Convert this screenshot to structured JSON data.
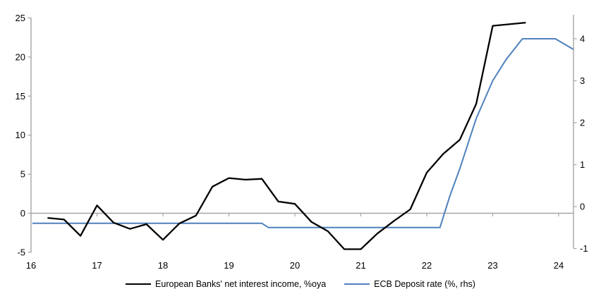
{
  "chart_data": {
    "type": "line",
    "title": "",
    "x_axis": {
      "tick_labels": [
        "16",
        "17",
        "18",
        "19",
        "20",
        "21",
        "22",
        "23",
        "24"
      ],
      "tick_values": [
        16,
        17,
        18,
        19,
        20,
        21,
        22,
        23,
        24
      ],
      "range": [
        16,
        24.25
      ]
    },
    "left_axis": {
      "tick_values": [
        25,
        20,
        15,
        10,
        5,
        0,
        -5
      ],
      "range": [
        -5,
        25
      ]
    },
    "right_axis": {
      "tick_values": [
        4,
        3,
        2,
        1,
        0,
        -1
      ],
      "range": [
        -1,
        4.5
      ]
    },
    "grid": "zero-line-only",
    "legend_position": "bottom",
    "colors": {
      "axis": "#a6a6a6",
      "zero_line": "#a6a6a6",
      "series_nii": "#000000",
      "series_ecb": "#4f81bd"
    },
    "series": [
      {
        "name": "European Banks' net interest income, %oya",
        "axis": "left",
        "color": "#000000",
        "points": [
          [
            16.25,
            -0.6
          ],
          [
            16.5,
            -0.8
          ],
          [
            16.75,
            -2.9
          ],
          [
            17.0,
            1.0
          ],
          [
            17.25,
            -1.2
          ],
          [
            17.5,
            -2.0
          ],
          [
            17.75,
            -1.4
          ],
          [
            18.0,
            -3.4
          ],
          [
            18.25,
            -1.3
          ],
          [
            18.5,
            -0.3
          ],
          [
            18.75,
            3.4
          ],
          [
            19.0,
            4.5
          ],
          [
            19.25,
            4.3
          ],
          [
            19.5,
            4.4
          ],
          [
            19.75,
            1.5
          ],
          [
            20.0,
            1.2
          ],
          [
            20.25,
            -1.1
          ],
          [
            20.5,
            -2.3
          ],
          [
            20.75,
            -4.6
          ],
          [
            21.0,
            -4.6
          ],
          [
            21.25,
            -2.6
          ],
          [
            21.5,
            -1.0
          ],
          [
            21.75,
            0.5
          ],
          [
            22.0,
            5.2
          ],
          [
            22.25,
            7.6
          ],
          [
            22.5,
            9.4
          ],
          [
            22.75,
            14.0
          ],
          [
            23.0,
            24.0
          ],
          [
            23.25,
            24.2
          ],
          [
            23.5,
            24.4
          ]
        ]
      },
      {
        "name": "ECB Deposit rate (%, rhs)",
        "axis": "right",
        "color": "#4f81bd",
        "points": [
          [
            16.02,
            -0.4
          ],
          [
            19.5,
            -0.4
          ],
          [
            19.6,
            -0.5
          ],
          [
            22.2,
            -0.5
          ],
          [
            22.35,
            0.25
          ],
          [
            22.5,
            0.9
          ],
          [
            22.75,
            2.1
          ],
          [
            23.0,
            3.0
          ],
          [
            23.2,
            3.5
          ],
          [
            23.45,
            4.0
          ],
          [
            23.95,
            4.0
          ],
          [
            24.22,
            3.75
          ]
        ]
      }
    ]
  }
}
